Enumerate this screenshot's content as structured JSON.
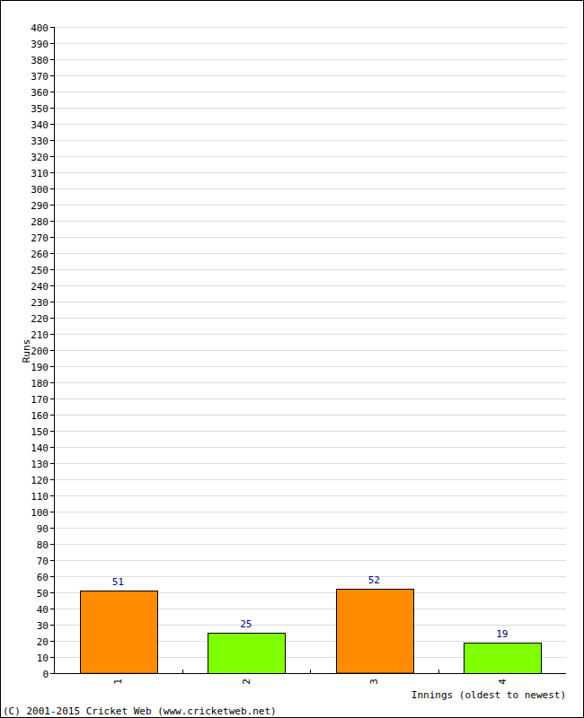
{
  "chart_data": {
    "type": "bar",
    "categories": [
      "1",
      "2",
      "3",
      "4"
    ],
    "values": [
      51,
      25,
      52,
      19
    ],
    "colors": [
      "#ff8c00",
      "#80ff00",
      "#ff8c00",
      "#80ff00"
    ],
    "ylim": [
      0,
      400
    ],
    "yticks": [
      0,
      10,
      20,
      30,
      40,
      50,
      60,
      70,
      80,
      90,
      100,
      110,
      120,
      130,
      140,
      150,
      160,
      170,
      180,
      190,
      200,
      210,
      220,
      230,
      240,
      250,
      260,
      270,
      280,
      290,
      300,
      310,
      320,
      330,
      340,
      350,
      360,
      370,
      380,
      390,
      400
    ],
    "grid": true,
    "data_labels": true,
    "y_label": "Runs",
    "x_label": "Innings (oldest to newest)",
    "footer": "(C) 2001-2015 Cricket Web (www.cricketweb.net)"
  }
}
